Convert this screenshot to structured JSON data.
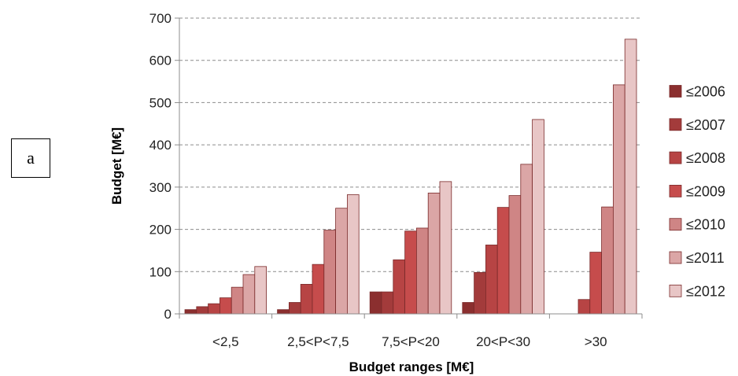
{
  "panel_label": "a",
  "chart_data": {
    "type": "bar",
    "title": "",
    "xlabel": "Budget ranges [M€]",
    "ylabel": "Budget [M€]",
    "ylim": [
      0,
      700
    ],
    "yticks": [
      0,
      100,
      200,
      300,
      400,
      500,
      600,
      700
    ],
    "grid": "horizontal dashed",
    "legend_position": "right",
    "categories": [
      "<2,5",
      "2,5<P<7,5",
      "7,5<P<20",
      "20<P<30",
      ">30"
    ],
    "series": [
      {
        "name": "≤2006",
        "color": "#8b2f2f",
        "values": [
          10,
          10,
          52,
          27,
          0
        ]
      },
      {
        "name": "≤2007",
        "color": "#a33b3b",
        "values": [
          17,
          27,
          52,
          98,
          0
        ]
      },
      {
        "name": "≤2008",
        "color": "#b74444",
        "values": [
          24,
          70,
          128,
          163,
          34
        ]
      },
      {
        "name": "≤2009",
        "color": "#c64c4c",
        "values": [
          38,
          117,
          196,
          252,
          146
        ]
      },
      {
        "name": "≤2010",
        "color": "#cf8585",
        "values": [
          63,
          198,
          203,
          280,
          253
        ]
      },
      {
        "name": "≤2011",
        "color": "#dba6a6",
        "values": [
          93,
          250,
          286,
          354,
          542
        ]
      },
      {
        "name": "≤2012",
        "color": "#e8c6c6",
        "values": [
          112,
          282,
          313,
          460,
          650
        ]
      }
    ]
  }
}
